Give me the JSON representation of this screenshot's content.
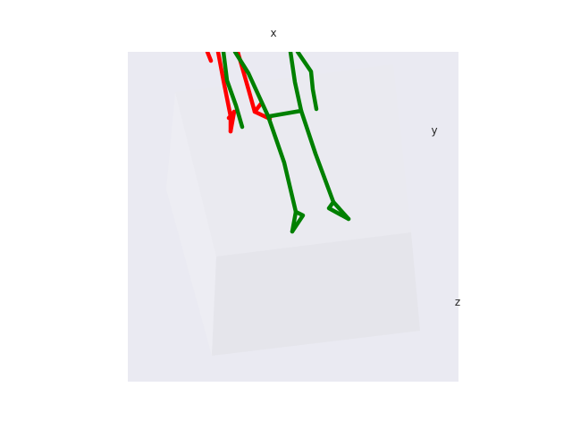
{
  "chart_data": {
    "type": "3d-skeleton",
    "title": "",
    "axis_labels": {
      "x": "x",
      "y": "y",
      "z": "z"
    },
    "grid": false,
    "colors": {
      "figure_background": "#ffffff",
      "axes_background": "#eaeaf2",
      "pane_left": "#ededf3",
      "pane_top": "#eaeaf0",
      "pane_front": "#e5e5eb",
      "text": "#262626"
    },
    "series": [
      {
        "color": "#ff0000",
        "stroke": "red"
      },
      {
        "color": "#008000",
        "stroke": "green"
      }
    ]
  }
}
